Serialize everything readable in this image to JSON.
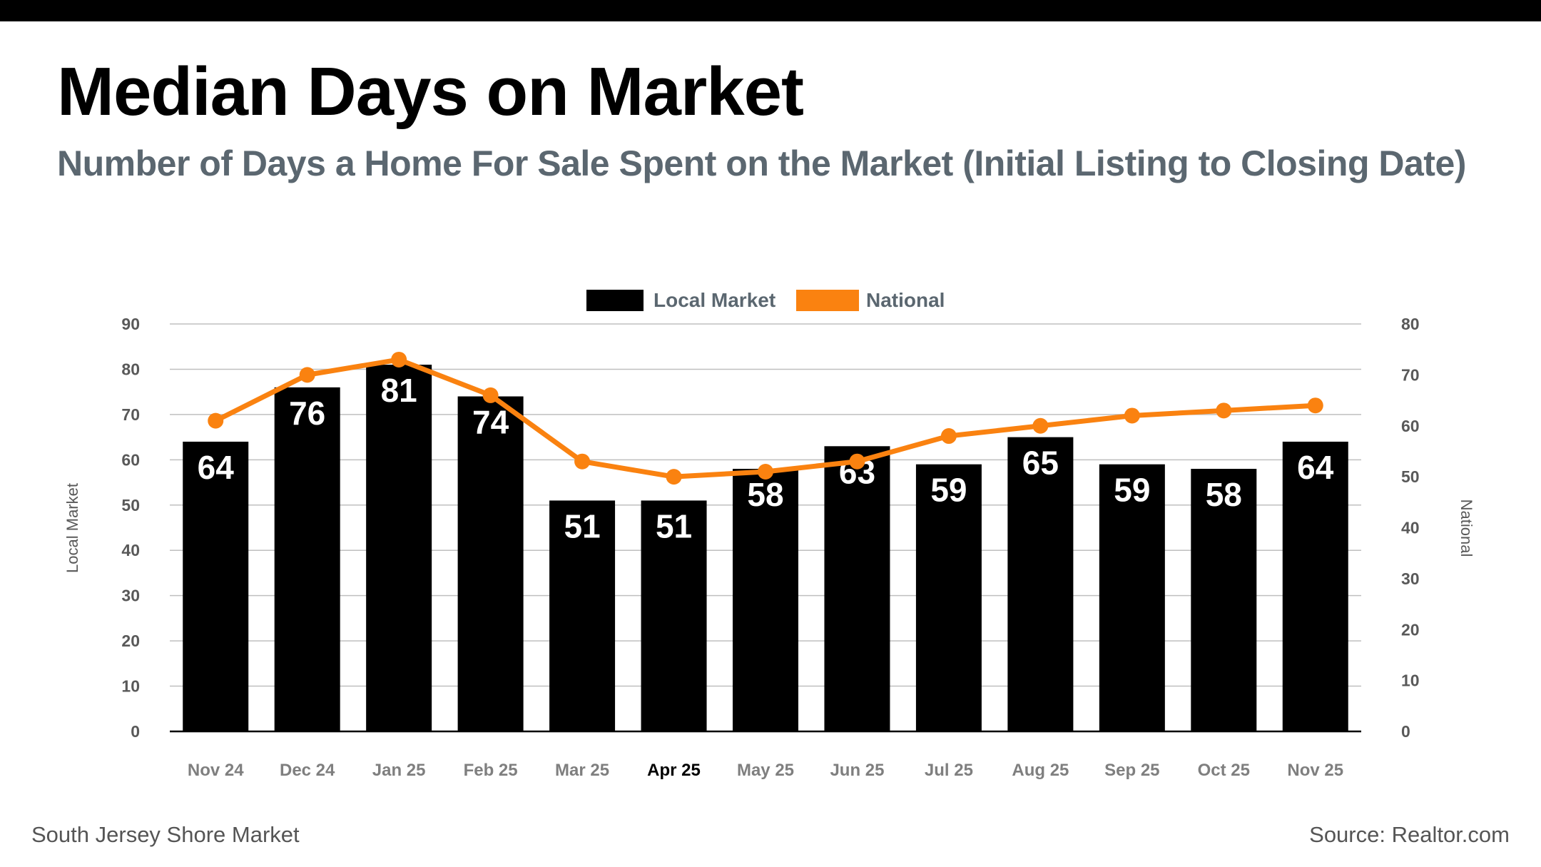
{
  "title": "Median Days on Market",
  "subtitle": "Number of Days a Home For Sale Spent on the Market (Initial Listing to Closing Date)",
  "footer": {
    "market": "South Jersey Shore Market",
    "source": "Source: Realtor.com"
  },
  "colors": {
    "bar": "#000000",
    "line": "#fa8210",
    "grid": "#bfbfbf",
    "text": "#595959",
    "highlight_label": "#000000"
  },
  "chart_data": {
    "type": "bar",
    "categories": [
      "Nov 24",
      "Dec 24",
      "Jan 25",
      "Feb 25",
      "Mar 25",
      "Apr 25",
      "May 25",
      "Jun 25",
      "Jul 25",
      "Aug 25",
      "Sep 25",
      "Oct 25",
      "Nov 25"
    ],
    "highlighted_category": "Apr 25",
    "series": [
      {
        "name": "Local Market",
        "type": "bar",
        "axis": "left",
        "values": [
          64,
          76,
          81,
          74,
          51,
          51,
          58,
          63,
          59,
          65,
          59,
          58,
          64
        ]
      },
      {
        "name": "National",
        "type": "line",
        "axis": "right",
        "values": [
          61,
          70,
          73,
          66,
          53,
          50,
          51,
          53,
          58,
          60,
          62,
          63,
          64
        ]
      }
    ],
    "ylabel_left": "Local Market",
    "ylabel_right": "National",
    "ylim_left": [
      0,
      90
    ],
    "yticks_left": [
      0,
      10,
      20,
      30,
      40,
      50,
      60,
      70,
      80,
      90
    ],
    "ylim_right": [
      0,
      80
    ],
    "yticks_right": [
      0,
      10,
      20,
      30,
      40,
      50,
      60,
      70,
      80
    ],
    "legend": [
      "Local Market",
      "National"
    ],
    "legend_position": "top-center",
    "grid": true
  }
}
